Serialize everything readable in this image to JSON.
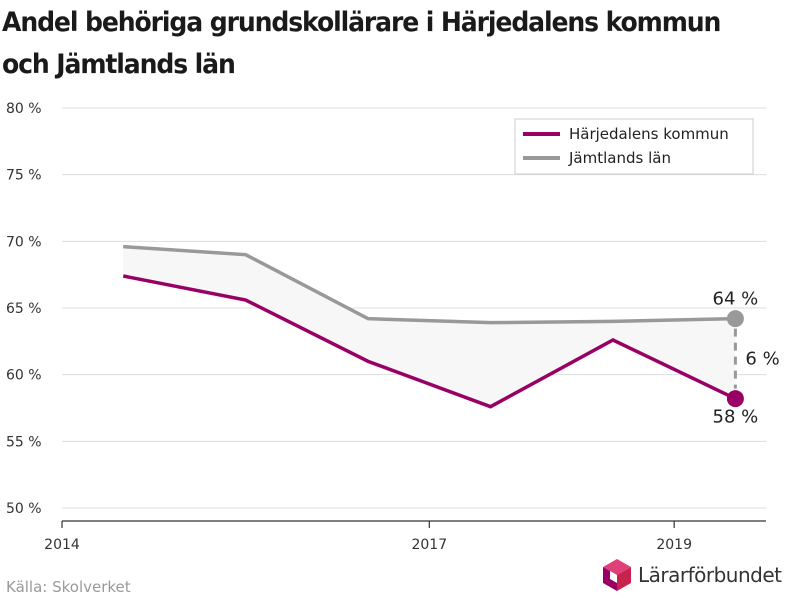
{
  "title": "Andel behöriga grundskollärare i Härjedalens kommun och Jämtlands län",
  "source": "Källa: Skolverket",
  "logo_text": "Lärarförbundet",
  "colors": {
    "harjedalen": "#990066",
    "jamtland": "#999999",
    "grid": "#dddddd",
    "fill": "#f7f7f7"
  },
  "chart_data": {
    "type": "line",
    "title": "Andel behöriga grundskollärare i Härjedalens kommun och Jämtlands län",
    "x": [
      2014.5,
      2015.5,
      2016.5,
      2017.5,
      2018.5,
      2019.5
    ],
    "xlim": [
      2014,
      2019.75
    ],
    "xticks": [
      2014,
      2017,
      2019
    ],
    "ylim": [
      50,
      80
    ],
    "yticks": [
      50,
      55,
      60,
      65,
      70,
      75,
      80
    ],
    "ytick_suffix": " %",
    "grid": true,
    "legend_position": "top-right",
    "series": [
      {
        "name": "Härjedalens kommun",
        "color": "#990066",
        "values": [
          67.4,
          65.6,
          61.0,
          57.6,
          62.6,
          58.2
        ]
      },
      {
        "name": "Jämtlands län",
        "color": "#999999",
        "values": [
          69.6,
          69.0,
          64.2,
          63.9,
          64.0,
          64.2
        ]
      }
    ],
    "annotations": {
      "jamtland_last": "64 %",
      "harjedalen_last": "58 %",
      "difference": "6 %"
    }
  }
}
